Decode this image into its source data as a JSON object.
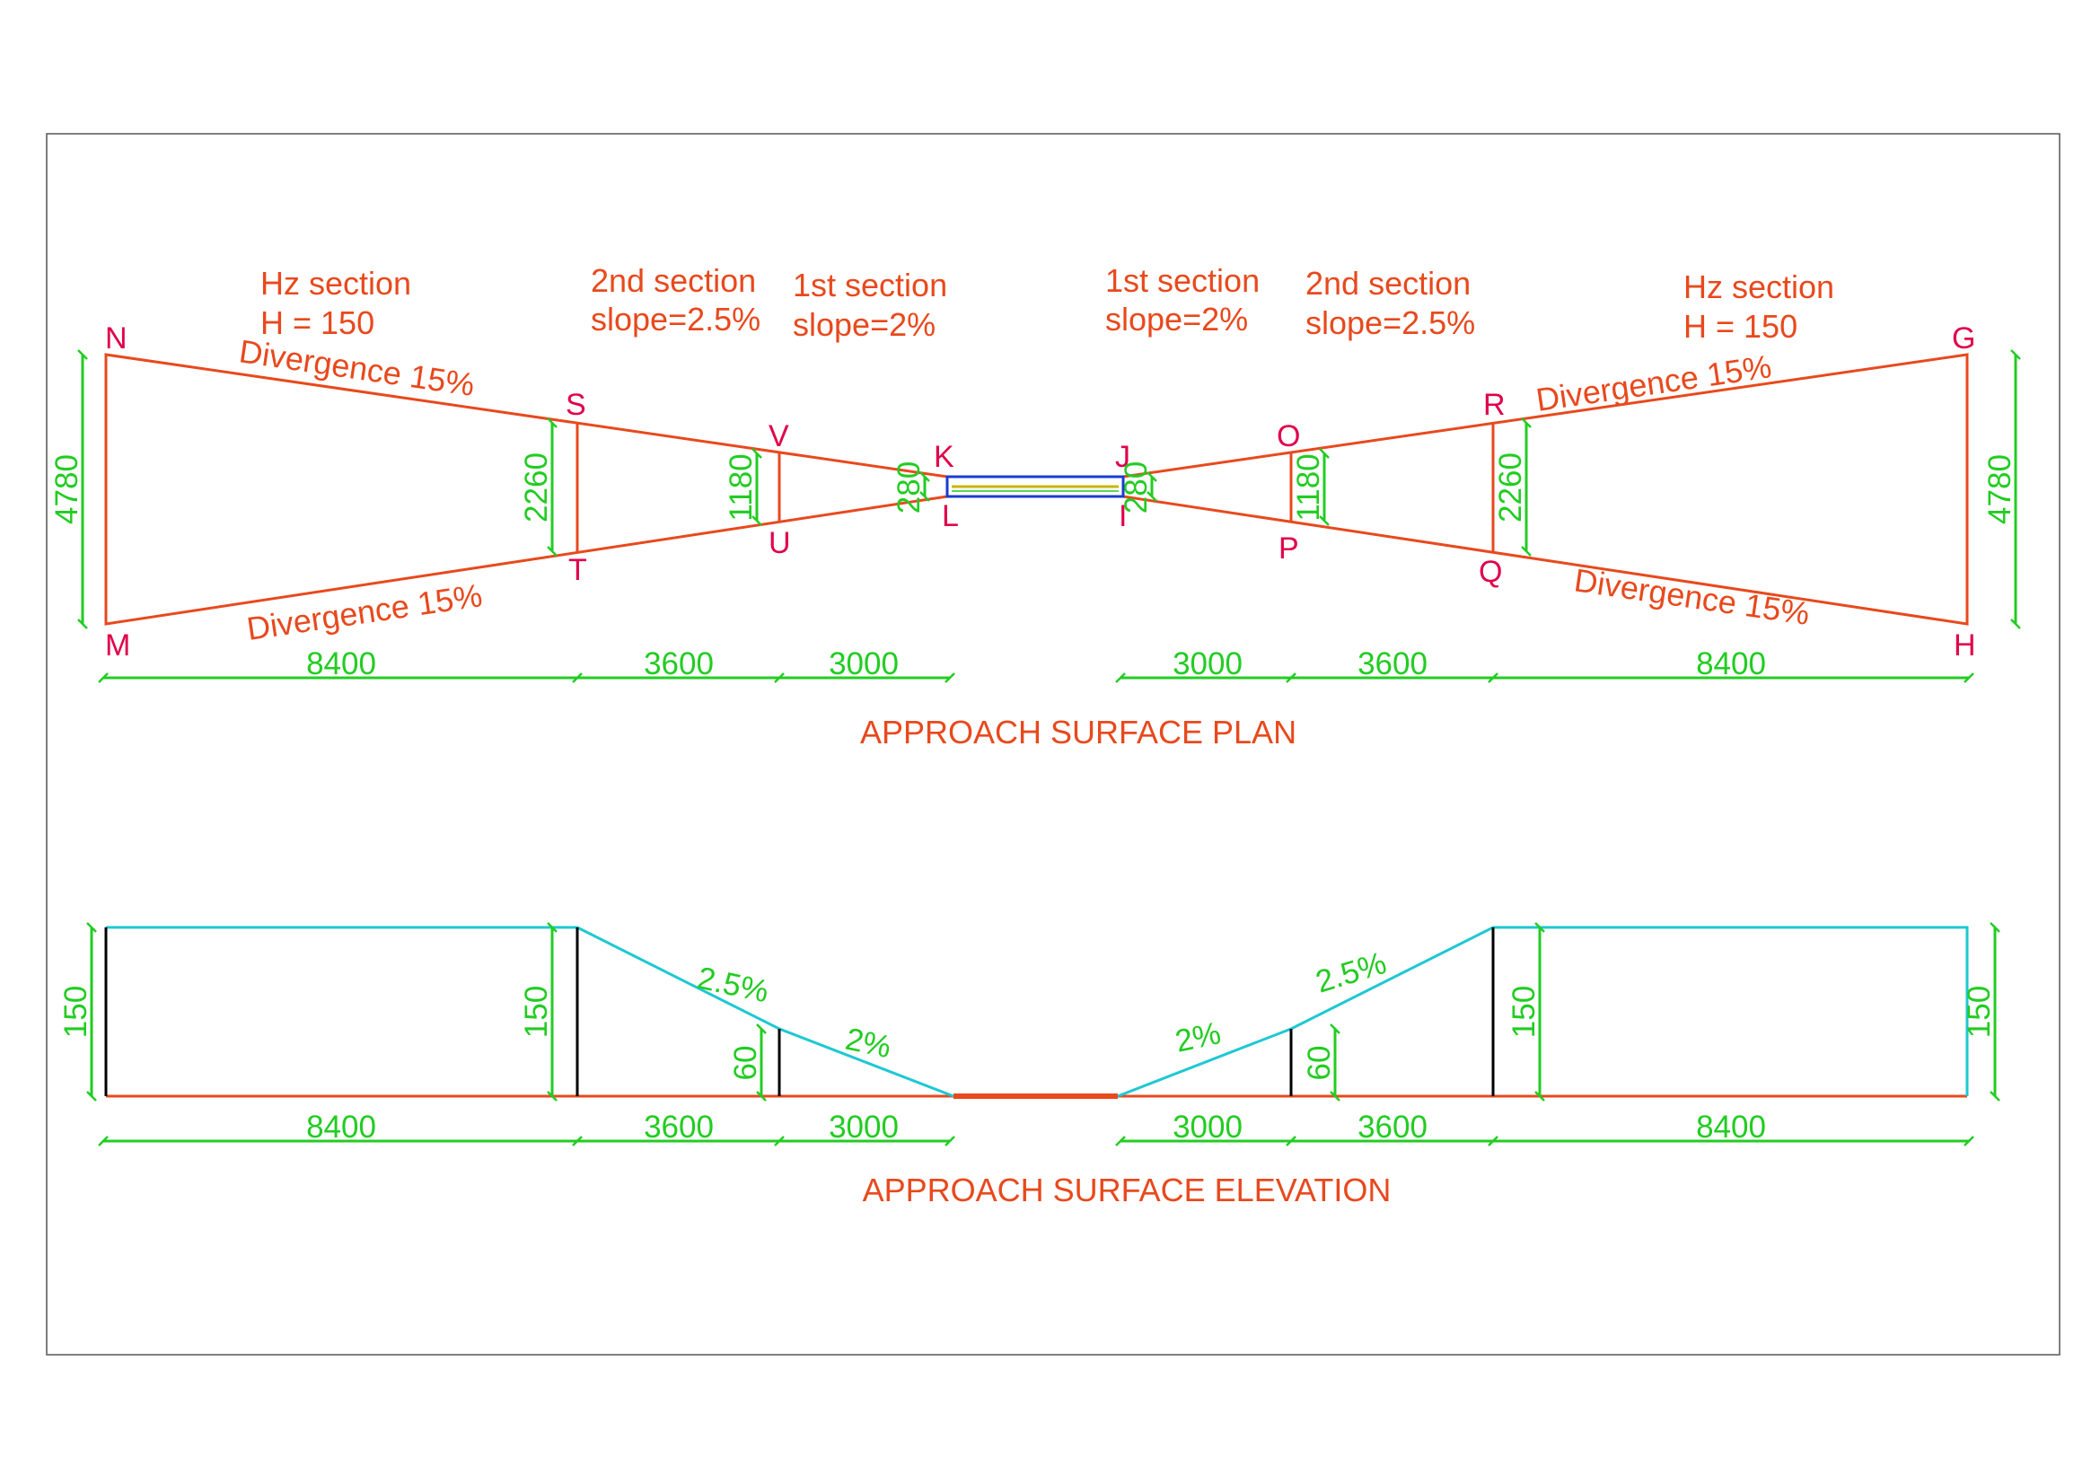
{
  "plan": {
    "title": "APPROACH SURFACE PLAN",
    "section_labels": {
      "left_hz_1": "Hz section",
      "left_hz_2": "H = 150",
      "left_second_1": "2nd section",
      "left_second_2": "slope=2.5%",
      "left_first_1": "1st section",
      "left_first_2": "slope=2%",
      "right_first_1": "1st section",
      "right_first_2": "slope=2%",
      "right_second_1": "2nd section",
      "right_second_2": "slope=2.5%",
      "right_hz_1": "Hz section",
      "right_hz_2": "H = 150"
    },
    "divergence": {
      "left_top": "Divergence 15%",
      "left_bottom": "Divergence 15%",
      "right_top": "Divergence 15%",
      "right_bottom": "Divergence 15%"
    },
    "points": {
      "N": "N",
      "M": "M",
      "S": "S",
      "T": "T",
      "V": "V",
      "U": "U",
      "K": "K",
      "L": "L",
      "J": "J",
      "I": "I",
      "O": "O",
      "P": "P",
      "R": "R",
      "Q": "Q",
      "G": "G",
      "H": "H"
    },
    "widths": {
      "left_outer": "4780",
      "left_second": "2260",
      "left_first": "1180",
      "left_inner": "280",
      "right_inner": "280",
      "right_first": "1180",
      "right_second": "2260",
      "right_outer": "4780"
    },
    "lengths": {
      "left_hz": "8400",
      "left_second": "3600",
      "left_first": "3000",
      "right_first": "3000",
      "right_second": "3600",
      "right_hz": "8400"
    }
  },
  "elevation": {
    "title": "APPROACH SURFACE ELEVATION",
    "slopes": {
      "left_second": "2.5%",
      "left_first": "2%",
      "right_first": "2%",
      "right_second": "2.5%"
    },
    "heights": {
      "left_outer": "150",
      "left_second": "150",
      "left_first": "60",
      "right_first": "60",
      "right_second": "150",
      "right_outer": "150"
    },
    "lengths": {
      "left_hz": "8400",
      "left_second": "3600",
      "left_first": "3000",
      "right_first": "3000",
      "right_second": "3600",
      "right_hz": "8400"
    }
  },
  "colors": {
    "surface_line": "#e8491d",
    "point_label": "#e0004a",
    "dimension": "#22cc22",
    "elevation_profile": "#1ec8d2",
    "runway_strip": "#1a3ccf",
    "runway_centre": "#c9b600"
  }
}
